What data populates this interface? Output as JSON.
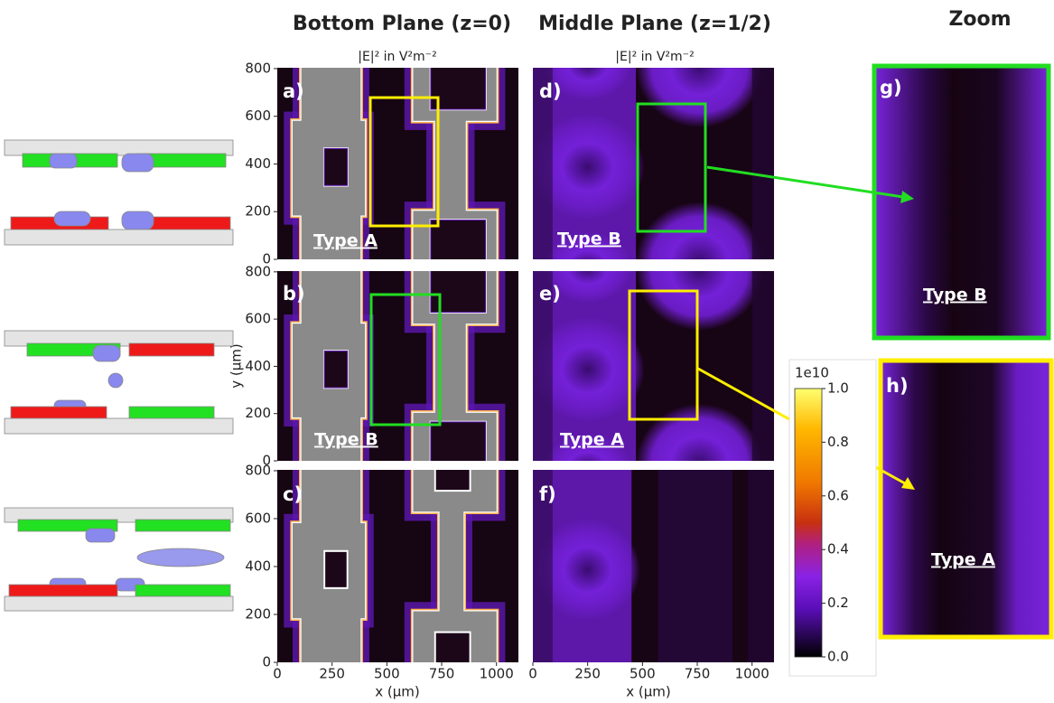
{
  "columns": {
    "bottom": "Bottom Plane (z=0)",
    "middle": "Middle Plane (z=1/2)",
    "zoom": "Zoom"
  },
  "field_label": "|E|² in V²m⁻²",
  "panels": [
    {
      "label": "a)",
      "type": "Type A"
    },
    {
      "label": "b)",
      "type": "Type B"
    },
    {
      "label": "c)"
    },
    {
      "label": "d)",
      "type": "Type B"
    },
    {
      "label": "e)",
      "type": "Type A"
    },
    {
      "label": "f)"
    },
    {
      "label": "g)",
      "type": "Type B"
    },
    {
      "label": "h)",
      "type": "Type A"
    }
  ],
  "axes": {
    "y_ticks": [
      "0",
      "200",
      "400",
      "600",
      "800"
    ],
    "x_ticks": [
      "0",
      "250",
      "500",
      "750",
      "1000"
    ],
    "x_label": "x (μm)",
    "y_label": "y (μm)"
  },
  "colorbar": {
    "scale": "1e10",
    "ticks": [
      "0.0",
      "0.2",
      "0.4",
      "0.6",
      "0.8",
      "1.0"
    ]
  }
}
